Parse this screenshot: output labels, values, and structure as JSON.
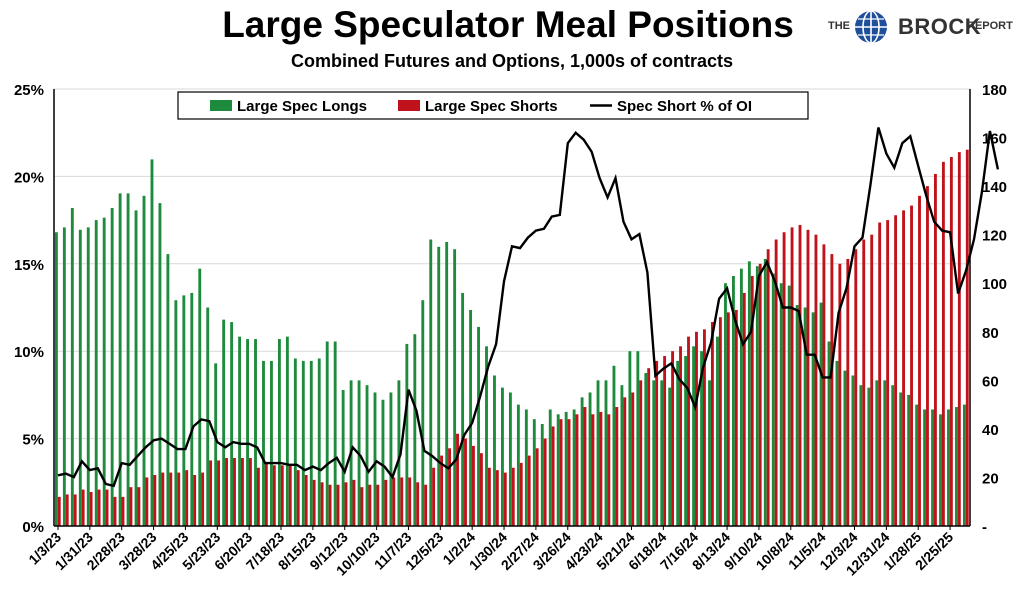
{
  "title": "Large Speculator Meal Positions",
  "subtitle": "Combined Futures and Options, 1,000s of contracts",
  "logo": {
    "the": "THE",
    "brock": "BROCK",
    "report": "REPORT"
  },
  "colors": {
    "longs": "#1e8a3c",
    "shorts": "#c0121a",
    "line": "#000000",
    "grid": "#d9d9d9"
  },
  "chart_data": {
    "type": "bar",
    "y_left_ticks": [
      "0%",
      "5%",
      "10%",
      "15%",
      "20%",
      "25%"
    ],
    "y_left_range": [
      0,
      25
    ],
    "y_right_ticks": [
      "-",
      "20",
      "40",
      "60",
      "80",
      "100",
      "120",
      "140",
      "160",
      "180"
    ],
    "y_right_range": [
      0,
      180
    ],
    "x_tick_labels": [
      "1/3/23",
      "1/31/23",
      "2/28/23",
      "3/28/23",
      "4/25/23",
      "5/23/23",
      "6/20/23",
      "7/18/23",
      "8/15/23",
      "9/12/23",
      "10/10/23",
      "11/7/23",
      "12/5/23",
      "1/2/24",
      "1/30/24",
      "2/27/24",
      "3/26/24",
      "4/23/24",
      "5/21/24",
      "6/18/24",
      "7/16/24",
      "8/13/24",
      "9/10/24",
      "10/8/24",
      "11/5/24",
      "12/3/24",
      "12/31/24",
      "1/28/25",
      "2/25/25"
    ],
    "legend": [
      "Large Spec Longs",
      "Large Spec Shorts",
      "Spec Short % of OI"
    ],
    "series": [
      {
        "name": "Large Spec Longs",
        "axis": "right",
        "values": [
          121,
          123,
          131,
          122,
          123,
          125,
          127,
          129,
          137,
          137,
          130,
          135,
          150,
          137,
          112,
          101,
          93,
          95,
          96,
          106,
          90,
          81,
          85,
          84,
          94,
          86,
          85,
          79,
          78,
          77,
          77,
          74,
          71,
          75,
          68,
          68,
          78,
          76,
          68,
          63,
          80,
          76,
          59,
          58,
          64,
          63,
          61,
          55,
          55,
          50,
          60,
          61,
          79,
          88,
          85,
          89,
          93,
          98,
          105,
          113,
          117,
          117,
          114,
          106,
          97,
          83,
          86,
          76,
          73,
          61,
          55,
          51,
          60,
          65,
          55,
          45,
          43,
          40,
          44,
          48,
          53,
          59,
          54,
          72,
          78,
          85,
          86,
          82,
          80,
          85,
          74,
          76,
          57,
          76,
          85,
          76,
          80,
          74,
          85,
          77,
          77,
          81,
          67,
          58,
          66,
          63,
          57,
          53,
          59,
          65,
          62,
          56,
          57,
          52,
          52,
          45,
          46,
          47,
          50,
          55,
          61,
          69,
          69,
          71,
          75,
          71,
          95,
          86,
          80,
          52,
          56,
          54,
          52,
          52,
          50,
          51,
          49,
          55,
          54,
          54,
          60,
          60,
          66,
          67,
          69,
          71,
          72,
          74,
          78,
          86,
          80,
          86,
          93,
          104,
          103,
          100,
          94,
          83,
          87,
          97,
          101,
          110,
          112,
          112,
          111,
          115,
          114,
          109,
          104,
          101,
          96,
          89,
          70,
          80,
          72,
          91,
          94,
          94,
          96,
          100,
          104,
          106,
          109,
          124,
          114,
          111,
          109,
          108,
          107,
          107,
          106,
          104,
          95,
          98,
          102,
          100,
          102,
          84,
          94,
          86,
          82,
          82,
          80,
          83,
          84,
          80,
          75,
          69,
          73,
          58,
          65,
          60,
          60,
          54,
          63,
          57,
          61,
          66,
          52,
          57,
          61,
          61,
          55,
          52,
          52,
          54,
          54,
          48,
          52,
          55,
          48,
          45,
          40,
          50,
          50,
          55,
          60,
          64,
          65,
          72,
          75,
          78,
          70,
          55,
          51,
          42,
          40,
          35,
          40,
          38,
          37,
          38,
          42,
          41,
          41,
          47,
          47,
          52,
          55,
          60,
          64,
          70,
          60,
          55,
          50,
          48,
          47,
          47,
          46,
          46,
          48,
          48,
          50,
          50
        ]
      },
      {
        "name": "Large Spec Shorts",
        "axis": "right",
        "values": []
      },
      {
        "name": "Spec Short % of OI",
        "axis": "left",
        "values": []
      }
    ]
  }
}
